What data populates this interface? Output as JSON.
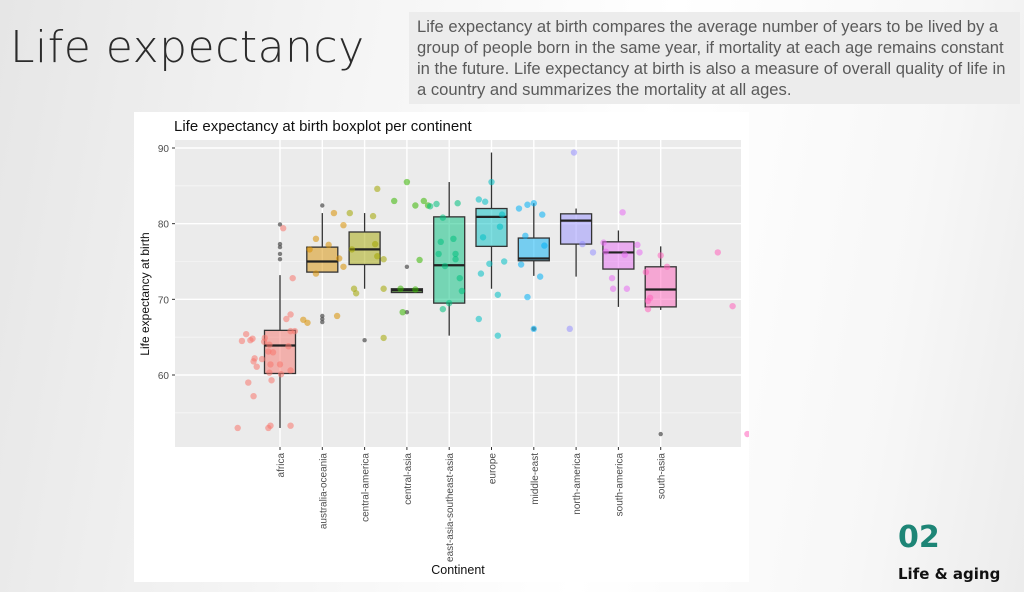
{
  "slide": {
    "title": "Life expectancy",
    "description": "Life expectancy at birth compares the average number of years to be lived by a group of people born in the same year, if mortality at each age remains constant in the future. Life expectancy at birth is also a measure of overall quality of life in a country and summarizes the mortality at all ages.",
    "section_number": "02",
    "section_label": "Life & aging",
    "accent_color": "#1d8576"
  },
  "chart_data": {
    "type": "boxplot",
    "title": "Life expectancy at birth boxplot per continent",
    "xlabel": "Continent",
    "ylabel": "Life expectancy at birth",
    "ylim": [
      51,
      91
    ],
    "yticks": [
      60,
      70,
      80,
      90
    ],
    "grid": true,
    "legend": "none",
    "categories": [
      "africa",
      "australia-oceania",
      "central-america",
      "central-asia",
      "east-asia-southeast-asia",
      "europe",
      "middle-east",
      "north-america",
      "south-america",
      "south-asia"
    ],
    "colors": [
      "#f8766d",
      "#d89000",
      "#a3a500",
      "#39b600",
      "#00bf7d",
      "#00bfc4",
      "#00b0f6",
      "#9590ff",
      "#e76bf3",
      "#ff62bc"
    ],
    "boxes": [
      {
        "category": "africa",
        "whisker_low": 53.0,
        "q1": 60.2,
        "median": 63.9,
        "q3": 65.9,
        "whisker_high": 73.2,
        "outliers": [
          75.3,
          76.0,
          76.9,
          77.3,
          79.9
        ]
      },
      {
        "category": "australia-oceania",
        "whisker_low": 73.6,
        "q1": 73.6,
        "median": 75.0,
        "q3": 76.9,
        "whisker_high": 81.4,
        "outliers": [
          82.4,
          67.0,
          67.4,
          67.8
        ]
      },
      {
        "category": "central-america",
        "whisker_low": 71.4,
        "q1": 74.6,
        "median": 76.6,
        "q3": 78.9,
        "whisker_high": 81.4,
        "outliers": [
          64.6
        ]
      },
      {
        "category": "central-asia",
        "whisker_low": 70.9,
        "q1": 70.9,
        "median": 71.2,
        "q3": 71.4,
        "whisker_high": 71.4,
        "outliers": [
          74.3,
          68.3
        ]
      },
      {
        "category": "east-asia-southeast-asia",
        "whisker_low": 65.2,
        "q1": 69.5,
        "median": 74.5,
        "q3": 80.9,
        "whisker_high": 85.5,
        "outliers": []
      },
      {
        "category": "europe",
        "whisker_low": 71.4,
        "q1": 77.0,
        "median": 80.9,
        "q3": 82.0,
        "whisker_high": 89.4,
        "outliers": []
      },
      {
        "category": "middle-east",
        "whisker_low": 73.1,
        "q1": 75.1,
        "median": 75.4,
        "q3": 78.1,
        "whisker_high": 82.7,
        "outliers": [
          66.1
        ]
      },
      {
        "category": "north-america",
        "whisker_low": 73.0,
        "q1": 77.3,
        "median": 80.4,
        "q3": 81.3,
        "whisker_high": 82.0,
        "outliers": []
      },
      {
        "category": "south-america",
        "whisker_low": 69.0,
        "q1": 74.0,
        "median": 76.2,
        "q3": 77.6,
        "whisker_high": 79.1,
        "outliers": []
      },
      {
        "category": "south-asia",
        "whisker_low": 68.6,
        "q1": 69.0,
        "median": 71.3,
        "q3": 74.3,
        "whisker_high": 77.0,
        "outliers": [
          52.2
        ]
      }
    ],
    "points": [
      {
        "c": 0,
        "dx": -2.0,
        "y": 53.0
      },
      {
        "c": 0,
        "dx": -1.8,
        "y": 64.5
      },
      {
        "c": 0,
        "dx": -1.6,
        "y": 65.4
      },
      {
        "c": 0,
        "dx": -1.4,
        "y": 64.6
      },
      {
        "c": 0,
        "dx": -1.3,
        "y": 64.8
      },
      {
        "c": 0,
        "dx": -1.5,
        "y": 59.0
      },
      {
        "c": 0,
        "dx": -1.25,
        "y": 61.8
      },
      {
        "c": 0,
        "dx": -1.2,
        "y": 62.2
      },
      {
        "c": 0,
        "dx": -1.1,
        "y": 61.1
      },
      {
        "c": 0,
        "dx": -1.25,
        "y": 57.2
      },
      {
        "c": 0,
        "dx": -0.85,
        "y": 62.1
      },
      {
        "c": 0,
        "dx": -0.75,
        "y": 64.4
      },
      {
        "c": 0,
        "dx": -0.72,
        "y": 64.9
      },
      {
        "c": 0,
        "dx": -0.5,
        "y": 64.0
      },
      {
        "c": 0,
        "dx": -0.55,
        "y": 63.1
      },
      {
        "c": 0,
        "dx": -0.45,
        "y": 61.4
      },
      {
        "c": 0,
        "dx": -0.5,
        "y": 60.3
      },
      {
        "c": 0,
        "dx": -0.4,
        "y": 59.3
      },
      {
        "c": 0,
        "dx": -0.33,
        "y": 63.0
      },
      {
        "c": 0,
        "dx": -0.55,
        "y": 53.0
      },
      {
        "c": 0,
        "dx": -0.45,
        "y": 53.3
      },
      {
        "c": 0,
        "dx": 0.0,
        "y": 61.4
      },
      {
        "c": 0,
        "dx": 0.05,
        "y": 60.1
      },
      {
        "c": 0,
        "dx": 0.4,
        "y": 63.8
      },
      {
        "c": 0,
        "dx": 0.5,
        "y": 60.6
      },
      {
        "c": 0,
        "dx": 0.5,
        "y": 53.3
      },
      {
        "c": 0,
        "dx": 0.5,
        "y": 68.0
      },
      {
        "c": 0,
        "dx": 0.3,
        "y": 67.4
      },
      {
        "c": 0,
        "dx": 0.5,
        "y": 65.8
      },
      {
        "c": 0,
        "dx": 0.7,
        "y": 65.8
      },
      {
        "c": 0,
        "dx": 0.6,
        "y": 72.8
      },
      {
        "c": 0,
        "dx": 0.15,
        "y": 79.4
      },
      {
        "c": 1,
        "dx": -0.9,
        "y": 67.3
      },
      {
        "c": 1,
        "dx": -0.7,
        "y": 66.9
      },
      {
        "c": 1,
        "dx": -0.6,
        "y": 76.6
      },
      {
        "c": 1,
        "dx": -0.3,
        "y": 78.0
      },
      {
        "c": 1,
        "dx": 0.3,
        "y": 77.2
      },
      {
        "c": 1,
        "dx": 0.55,
        "y": 81.4
      },
      {
        "c": 1,
        "dx": 1.0,
        "y": 79.8
      },
      {
        "c": 1,
        "dx": 1.0,
        "y": 74.3
      },
      {
        "c": 1,
        "dx": 0.8,
        "y": 75.4
      },
      {
        "c": 1,
        "dx": -0.3,
        "y": 73.4
      },
      {
        "c": 1,
        "dx": 0.7,
        "y": 67.8
      },
      {
        "c": 2,
        "dx": -0.7,
        "y": 81.4
      },
      {
        "c": 2,
        "dx": -0.6,
        "y": 76.6
      },
      {
        "c": 2,
        "dx": -0.5,
        "y": 71.4
      },
      {
        "c": 2,
        "dx": -0.4,
        "y": 70.8
      },
      {
        "c": 2,
        "dx": 0.4,
        "y": 81.0
      },
      {
        "c": 2,
        "dx": 0.6,
        "y": 84.6
      },
      {
        "c": 2,
        "dx": 0.5,
        "y": 77.3
      },
      {
        "c": 2,
        "dx": 0.6,
        "y": 75.7
      },
      {
        "c": 2,
        "dx": 0.9,
        "y": 71.4
      },
      {
        "c": 2,
        "dx": 0.9,
        "y": 75.3
      },
      {
        "c": 2,
        "dx": 0.9,
        "y": 64.9
      },
      {
        "c": 3,
        "dx": -0.6,
        "y": 83.0
      },
      {
        "c": 3,
        "dx": 0.0,
        "y": 85.5
      },
      {
        "c": 3,
        "dx": 0.4,
        "y": 82.4
      },
      {
        "c": 3,
        "dx": 0.8,
        "y": 83.0
      },
      {
        "c": 3,
        "dx": -0.3,
        "y": 71.4
      },
      {
        "c": 3,
        "dx": 0.4,
        "y": 71.3
      },
      {
        "c": 3,
        "dx": -0.2,
        "y": 68.3
      },
      {
        "c": 3,
        "dx": 1.0,
        "y": 82.4
      },
      {
        "c": 3,
        "dx": 0.6,
        "y": 75.2
      },
      {
        "c": 4,
        "dx": -0.9,
        "y": 82.3
      },
      {
        "c": 4,
        "dx": -0.6,
        "y": 82.6
      },
      {
        "c": 4,
        "dx": -0.5,
        "y": 76.0
      },
      {
        "c": 4,
        "dx": -0.4,
        "y": 77.6
      },
      {
        "c": 4,
        "dx": -0.3,
        "y": 80.8
      },
      {
        "c": 4,
        "dx": 0.2,
        "y": 78.0
      },
      {
        "c": 4,
        "dx": 0.3,
        "y": 76.0
      },
      {
        "c": 4,
        "dx": 0.5,
        "y": 72.8
      },
      {
        "c": 4,
        "dx": -0.2,
        "y": 74.4
      },
      {
        "c": 4,
        "dx": 0.6,
        "y": 71.1
      },
      {
        "c": 4,
        "dx": 0.0,
        "y": 69.5
      },
      {
        "c": 4,
        "dx": -0.3,
        "y": 68.7
      },
      {
        "c": 4,
        "dx": 0.3,
        "y": 75.3
      },
      {
        "c": 4,
        "dx": 0.4,
        "y": 82.7
      },
      {
        "c": 5,
        "dx": -0.6,
        "y": 83.2
      },
      {
        "c": 5,
        "dx": -0.3,
        "y": 82.9
      },
      {
        "c": 5,
        "dx": 0.0,
        "y": 85.5
      },
      {
        "c": 5,
        "dx": -0.4,
        "y": 78.2
      },
      {
        "c": 5,
        "dx": 0.4,
        "y": 79.6
      },
      {
        "c": 5,
        "dx": 0.5,
        "y": 81.2
      },
      {
        "c": 5,
        "dx": 0.6,
        "y": 75.0
      },
      {
        "c": 5,
        "dx": -0.1,
        "y": 74.7
      },
      {
        "c": 5,
        "dx": 0.3,
        "y": 70.6
      },
      {
        "c": 5,
        "dx": -0.6,
        "y": 67.4
      },
      {
        "c": 5,
        "dx": 0.3,
        "y": 65.2
      },
      {
        "c": 5,
        "dx": -0.5,
        "y": 73.4
      },
      {
        "c": 6,
        "dx": -0.7,
        "y": 82.0
      },
      {
        "c": 6,
        "dx": -0.3,
        "y": 82.5
      },
      {
        "c": 6,
        "dx": 0.0,
        "y": 82.7
      },
      {
        "c": 6,
        "dx": 0.4,
        "y": 81.2
      },
      {
        "c": 6,
        "dx": -0.4,
        "y": 78.4
      },
      {
        "c": 6,
        "dx": 0.5,
        "y": 77.1
      },
      {
        "c": 6,
        "dx": -0.6,
        "y": 74.6
      },
      {
        "c": 6,
        "dx": 0.3,
        "y": 73.0
      },
      {
        "c": 6,
        "dx": -0.3,
        "y": 70.3
      },
      {
        "c": 6,
        "dx": 0.0,
        "y": 66.1
      },
      {
        "c": 7,
        "dx": -0.1,
        "y": 89.4
      },
      {
        "c": 7,
        "dx": 0.3,
        "y": 77.3
      },
      {
        "c": 7,
        "dx": -0.3,
        "y": 66.1
      },
      {
        "c": 7,
        "dx": 0.8,
        "y": 76.2
      },
      {
        "c": 8,
        "dx": 0.2,
        "y": 81.5
      },
      {
        "c": 8,
        "dx": -0.7,
        "y": 77.5
      },
      {
        "c": 8,
        "dx": -0.6,
        "y": 76.3
      },
      {
        "c": 8,
        "dx": 0.3,
        "y": 75.9
      },
      {
        "c": 8,
        "dx": -0.3,
        "y": 72.8
      },
      {
        "c": 8,
        "dx": -0.25,
        "y": 71.4
      },
      {
        "c": 8,
        "dx": 0.9,
        "y": 77.2
      },
      {
        "c": 8,
        "dx": 0.4,
        "y": 71.4
      },
      {
        "c": 8,
        "dx": 1.0,
        "y": 76.2
      },
      {
        "c": 9,
        "dx": -0.7,
        "y": 73.6
      },
      {
        "c": 9,
        "dx": 0.3,
        "y": 74.3
      },
      {
        "c": 9,
        "dx": -0.6,
        "y": 69.8
      },
      {
        "c": 9,
        "dx": -0.5,
        "y": 70.2
      },
      {
        "c": 9,
        "dx": -0.6,
        "y": 68.7
      },
      {
        "c": 9,
        "dx": 0.0,
        "y": 75.8
      },
      {
        "c": 9,
        "dx": 2.7,
        "y": 76.2
      },
      {
        "c": 9,
        "dx": 3.4,
        "y": 69.1
      },
      {
        "c": 9,
        "dx": 4.1,
        "y": 52.2
      }
    ]
  }
}
